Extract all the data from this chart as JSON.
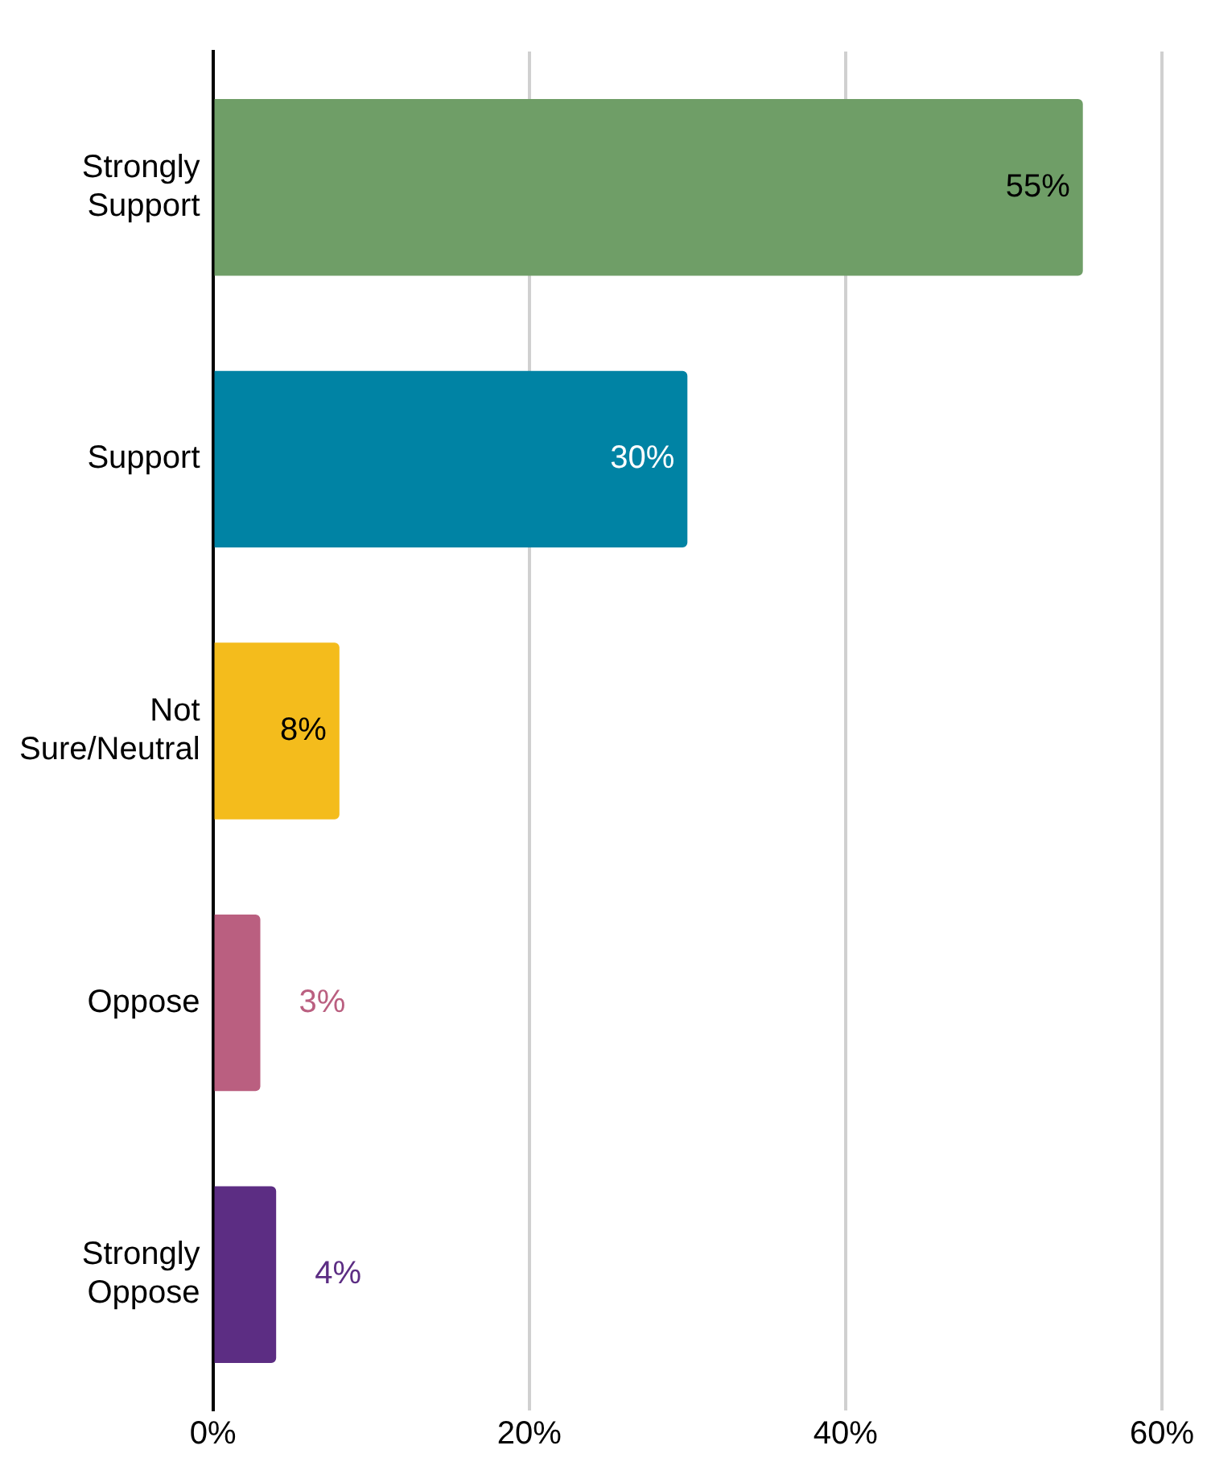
{
  "chart_data": {
    "type": "bar",
    "orientation": "horizontal",
    "categories": [
      "Strongly Support",
      "Support",
      "Not Sure/Neutral",
      "Oppose",
      "Strongly Oppose"
    ],
    "values": [
      55,
      30,
      8,
      3,
      4
    ],
    "colors": [
      "#6f9e67",
      "#0083a4",
      "#f4bc1c",
      "#ba5f80",
      "#5c2d83"
    ],
    "value_labels": [
      "55%",
      "30%",
      "8%",
      "3%",
      "4%"
    ],
    "xlim": [
      0,
      60
    ],
    "xticks": [
      {
        "value": 0,
        "label": "0%"
      },
      {
        "value": 20,
        "label": "20%"
      },
      {
        "value": 40,
        "label": "40%"
      },
      {
        "value": 60,
        "label": "60%"
      }
    ],
    "grid": "x"
  }
}
